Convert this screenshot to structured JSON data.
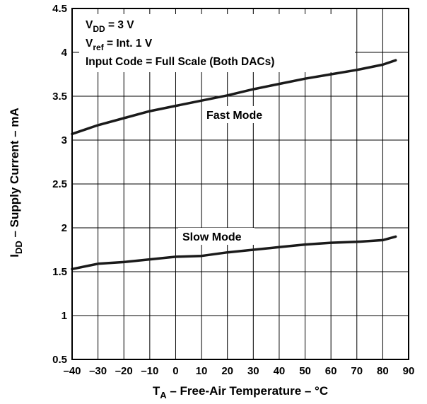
{
  "chart_data": {
    "type": "line",
    "title": "",
    "xlabel": {
      "main": "T",
      "sub": "A",
      "rest": " – Free-Air Temperature – °C"
    },
    "ylabel": {
      "main": "I",
      "sub": "DD",
      "rest": " – Supply Current – mA"
    },
    "xlim": [
      -40,
      90
    ],
    "ylim": [
      0.5,
      4.5
    ],
    "x_ticks": [
      -40,
      -30,
      -20,
      -10,
      0,
      10,
      20,
      30,
      40,
      50,
      60,
      70,
      80,
      90
    ],
    "x_tick_labels": [
      "–40",
      "–30",
      "–20",
      "–10",
      "0",
      "10",
      "20",
      "30",
      "40",
      "50",
      "60",
      "70",
      "80",
      "90"
    ],
    "y_ticks": [
      0.5,
      1,
      1.5,
      2,
      2.5,
      3,
      3.5,
      4,
      4.5
    ],
    "y_tick_labels": [
      "0.5",
      "1",
      "1.5",
      "2",
      "2.5",
      "3",
      "3.5",
      "4",
      "4.5"
    ],
    "grid": true,
    "annotations": {
      "vdd": {
        "main": "V",
        "sub": "DD",
        "rest": " = 3 V"
      },
      "vref": {
        "main": "V",
        "sub": "ref",
        "rest": " = Int. 1 V"
      },
      "input_code": "Input Code = Full Scale (Both DACs)"
    },
    "series": [
      {
        "name": "Fast Mode",
        "x": [
          -40,
          -30,
          -20,
          -10,
          0,
          10,
          20,
          30,
          40,
          50,
          60,
          70,
          80,
          85
        ],
        "y": [
          3.07,
          3.17,
          3.25,
          3.33,
          3.39,
          3.45,
          3.51,
          3.58,
          3.64,
          3.7,
          3.75,
          3.8,
          3.86,
          3.91
        ]
      },
      {
        "name": "Slow Mode",
        "x": [
          -40,
          -30,
          -20,
          -10,
          0,
          10,
          20,
          30,
          40,
          50,
          60,
          70,
          80,
          85
        ],
        "y": [
          1.53,
          1.59,
          1.61,
          1.64,
          1.67,
          1.68,
          1.72,
          1.75,
          1.78,
          1.81,
          1.83,
          1.84,
          1.86,
          1.9
        ]
      }
    ]
  }
}
